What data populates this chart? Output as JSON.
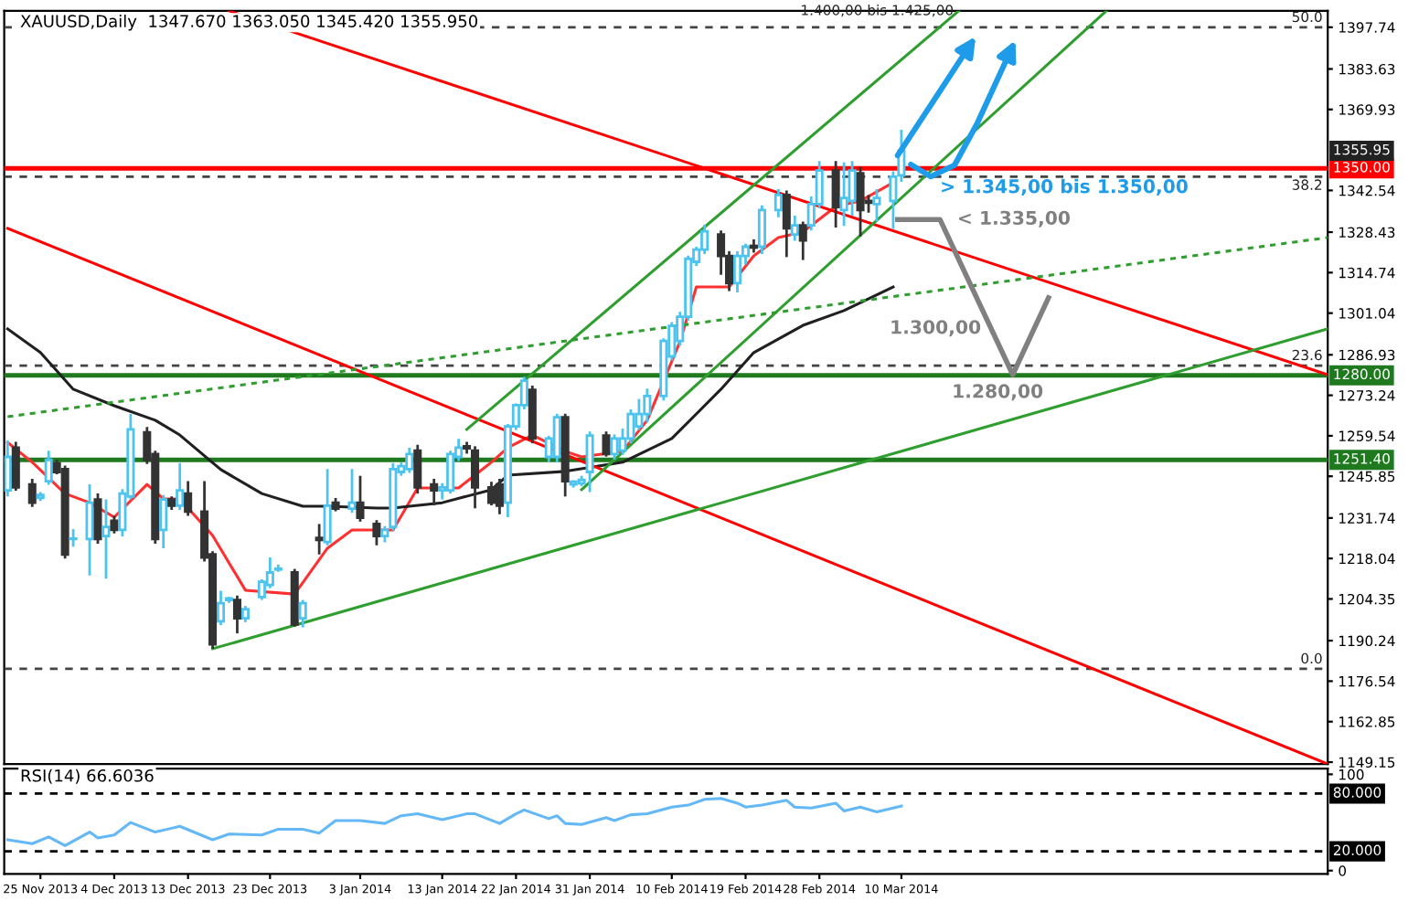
{
  "chart_data": [
    {
      "type": "candlestick",
      "title": "XAUUSD,Daily  1347.670 1363.050 1345.420 1355.950",
      "x": [
        "2013-11-21",
        "2013-11-22",
        "2013-11-24",
        "2013-11-25",
        "2013-11-26",
        "2013-11-27",
        "2013-11-28",
        "2013-11-29",
        "2013-12-01",
        "2013-12-02",
        "2013-12-03",
        "2013-12-04",
        "2013-12-05",
        "2013-12-06",
        "2013-12-08",
        "2013-12-09",
        "2013-12-10",
        "2013-12-11",
        "2013-12-12",
        "2013-12-13",
        "2013-12-15",
        "2013-12-16",
        "2013-12-17",
        "2013-12-18",
        "2013-12-19",
        "2013-12-20",
        "2013-12-22",
        "2013-12-23",
        "2013-12-24",
        "2013-12-26",
        "2013-12-27",
        "2013-12-29",
        "2013-12-30",
        "2013-12-31",
        "2014-01-02",
        "2014-01-03",
        "2014-01-05",
        "2014-01-06",
        "2014-01-07",
        "2014-01-08",
        "2014-01-09",
        "2014-01-10",
        "2014-01-12",
        "2014-01-13",
        "2014-01-14",
        "2014-01-15",
        "2014-01-16",
        "2014-01-17",
        "2014-01-19",
        "2014-01-20",
        "2014-01-21",
        "2014-01-22",
        "2014-01-23",
        "2014-01-24",
        "2014-01-26",
        "2014-01-27",
        "2014-01-28",
        "2014-01-29",
        "2014-01-30",
        "2014-01-31",
        "2014-02-02",
        "2014-02-03",
        "2014-02-04",
        "2014-02-05",
        "2014-02-06",
        "2014-02-07",
        "2014-02-09",
        "2014-02-10",
        "2014-02-11",
        "2014-02-12",
        "2014-02-13",
        "2014-02-14",
        "2014-02-16",
        "2014-02-17",
        "2014-02-18",
        "2014-02-19",
        "2014-02-20",
        "2014-02-21",
        "2014-02-23",
        "2014-02-24",
        "2014-02-25",
        "2014-02-26",
        "2014-02-27",
        "2014-02-28",
        "2014-03-02",
        "2014-03-03",
        "2014-03-04",
        "2014-03-05",
        "2014-03-06",
        "2014-03-07",
        "2014-03-09",
        "2014-03-10"
      ],
      "ohlc": [
        [
          1241.1,
          1258.0,
          1239.0,
          1252.4
        ],
        [
          1255.5,
          1257.5,
          1241.0,
          1242.1
        ],
        [
          1243.1,
          1245.0,
          1235.5,
          1236.9
        ],
        [
          1238.5,
          1240.5,
          1237.5,
          1239.5
        ],
        [
          1244.2,
          1254.5,
          1243.0,
          1251.4
        ],
        [
          1250.3,
          1251.5,
          1246.5,
          1247.3
        ],
        [
          1248.3,
          1249.5,
          1218.0,
          1219.4
        ],
        [
          1224.6,
          1228.0,
          1222.0,
          1224.8
        ],
        [
          1224.6,
          1243.1,
          1212.3,
          1236.9
        ],
        [
          1238.0,
          1240.0,
          1223.0,
          1224.6
        ],
        [
          1225.6,
          1238.0,
          1211.2,
          1228.7
        ],
        [
          1230.8,
          1232.5,
          1226.5,
          1227.7
        ],
        [
          1227.7,
          1241.5,
          1225.5,
          1240.0
        ],
        [
          1239.0,
          1266.9,
          1238.0,
          1261.7
        ],
        [
          1260.7,
          1262.5,
          1250.0,
          1251.4
        ],
        [
          1253.4,
          1254.5,
          1223.0,
          1224.6
        ],
        [
          1227.7,
          1239.5,
          1221.5,
          1238.0
        ],
        [
          1238.0,
          1239.0,
          1234.5,
          1235.9
        ],
        [
          1235.9,
          1250.3,
          1234.5,
          1241.1
        ],
        [
          1240.0,
          1244.2,
          1232.5,
          1233.9
        ],
        [
          1233.9,
          1244.2,
          1217.0,
          1218.4
        ],
        [
          1219.4,
          1220.5,
          1187.5,
          1189.0
        ],
        [
          1196.8,
          1207.1,
          1195.5,
          1202.9
        ],
        [
          1204.0,
          1205.0,
          1203.0,
          1204.5
        ],
        [
          1204.0,
          1205.5,
          1192.7,
          1197.8
        ],
        [
          1197.8,
          1202.0,
          1196.5,
          1200.9
        ],
        [
          1205.0,
          1211.0,
          1204.0,
          1210.2
        ],
        [
          1209.1,
          1218.4,
          1208.0,
          1213.3
        ],
        [
          1214.3,
          1216.0,
          1213.5,
          1214.6
        ],
        [
          1213.3,
          1214.5,
          1195.0,
          1195.7
        ],
        [
          1197.8,
          1204.0,
          1194.7,
          1202.9
        ],
        [
          1225.0,
          1229.7,
          1219.4,
          1224.3
        ],
        [
          1223.6,
          1248.3,
          1222.5,
          1235.9
        ],
        [
          1236.9,
          1238.5,
          1234.0,
          1234.9
        ],
        [
          1234.9,
          1248.3,
          1233.5,
          1236.9
        ],
        [
          1236.9,
          1246.0,
          1230.5,
          1231.8
        ],
        [
          1229.7,
          1231.0,
          1222.5,
          1225.6
        ],
        [
          1225.6,
          1229.0,
          1223.5,
          1227.7
        ],
        [
          1228.7,
          1250.3,
          1227.5,
          1248.3
        ],
        [
          1247.3,
          1250.5,
          1246.0,
          1249.3
        ],
        [
          1248.3,
          1255.5,
          1247.0,
          1253.4
        ],
        [
          1254.5,
          1256.5,
          1240.0,
          1242.1
        ],
        [
          1243.1,
          1245.0,
          1236.0,
          1241.1
        ],
        [
          1241.1,
          1243.5,
          1238.0,
          1242.1
        ],
        [
          1241.1,
          1254.5,
          1240.0,
          1253.4
        ],
        [
          1252.4,
          1258.5,
          1251.0,
          1255.5
        ],
        [
          1256.0,
          1257.5,
          1253.5,
          1255.3
        ],
        [
          1254.5,
          1256.0,
          1235.0,
          1242.1
        ],
        [
          1242.1,
          1244.0,
          1236.0,
          1236.9
        ],
        [
          1243.1,
          1245.0,
          1233.0,
          1235.9
        ],
        [
          1236.9,
          1263.5,
          1232.0,
          1262.7
        ],
        [
          1262.7,
          1270.5,
          1261.5,
          1269.9
        ],
        [
          1269.9,
          1279.5,
          1268.5,
          1278.2
        ],
        [
          1275.1,
          1276.5,
          1257.0,
          1258.6
        ],
        [
          1252.4,
          1259.5,
          1250.5,
          1258.6
        ],
        [
          1252.4,
          1267.0,
          1250.5,
          1265.8
        ],
        [
          1265.8,
          1267.0,
          1239.0,
          1244.2
        ],
        [
          1243.1,
          1244.5,
          1242.0,
          1244.0
        ],
        [
          1243.5,
          1246.0,
          1242.5,
          1244.6
        ],
        [
          1247.3,
          1261.0,
          1240.5,
          1259.6
        ],
        [
          1259.6,
          1261.0,
          1252.5,
          1253.4
        ],
        [
          1253.4,
          1260.0,
          1251.5,
          1258.6
        ],
        [
          1254.5,
          1262.0,
          1253.0,
          1258.6
        ],
        [
          1258.6,
          1268.5,
          1257.0,
          1266.9
        ],
        [
          1262.7,
          1272.0,
          1261.5,
          1266.9
        ],
        [
          1266.9,
          1275.5,
          1264.0,
          1273.0
        ],
        [
          1273.0,
          1292.5,
          1271.5,
          1291.6
        ],
        [
          1286.4,
          1298.0,
          1285.0,
          1296.7
        ],
        [
          1291.6,
          1301.5,
          1290.0,
          1299.8
        ],
        [
          1299.8,
          1320.5,
          1298.5,
          1319.4
        ],
        [
          1318.4,
          1323.5,
          1317.0,
          1322.5
        ],
        [
          1322.5,
          1331.0,
          1321.0,
          1328.7
        ],
        [
          1327.6,
          1329.0,
          1314.0,
          1320.4
        ],
        [
          1320.4,
          1322.0,
          1308.5,
          1311.2
        ],
        [
          1311.2,
          1322.0,
          1308.0,
          1320.4
        ],
        [
          1320.4,
          1324.5,
          1317.5,
          1323.5
        ],
        [
          1323.8,
          1326.0,
          1321.5,
          1323.2
        ],
        [
          1323.5,
          1337.5,
          1321.0,
          1335.9
        ],
        [
          1335.9,
          1343.0,
          1333.5,
          1341.0
        ],
        [
          1341.0,
          1342.5,
          1320.0,
          1329.7
        ],
        [
          1327.6,
          1334.0,
          1325.5,
          1330.7
        ],
        [
          1330.7,
          1332.0,
          1319.0,
          1325.6
        ],
        [
          1330.7,
          1340.5,
          1329.0,
          1337.9
        ],
        [
          1337.9,
          1352.5,
          1336.5,
          1349.3
        ],
        [
          1349.3,
          1352.5,
          1330.0,
          1336.9
        ],
        [
          1335.9,
          1352.0,
          1330.5,
          1340.0
        ],
        [
          1339.0,
          1352.5,
          1334.0,
          1349.3
        ],
        [
          1348.3,
          1350.5,
          1327.0,
          1335.9
        ],
        [
          1339.0,
          1341.0,
          1335.0,
          1338.4
        ],
        [
          1337.9,
          1343.0,
          1332.0,
          1340.0
        ],
        [
          1339.0,
          1349.0,
          1329.5,
          1347.2
        ],
        [
          1347.67,
          1363.05,
          1345.42,
          1355.95
        ]
      ],
      "series": [
        {
          "type": "line",
          "color": "#ff3030",
          "x": [
            "2013-11-21",
            "2013-11-24",
            "2013-11-28",
            "2013-12-01",
            "2013-12-04",
            "2013-12-08",
            "2013-12-10",
            "2013-12-12",
            "2013-12-16",
            "2013-12-20",
            "2013-12-26",
            "2013-12-30",
            "2014-01-02",
            "2014-01-07",
            "2014-01-10",
            "2014-01-15",
            "2014-01-19",
            "2014-01-21",
            "2014-01-24",
            "2014-01-28",
            "2014-01-30",
            "2014-02-04",
            "2014-02-07",
            "2014-02-11",
            "2014-02-13",
            "2014-02-17",
            "2014-02-20",
            "2014-02-23",
            "2014-02-26",
            "2014-03-02",
            "2014-03-05",
            "2014-03-09"
          ],
          "values": [
            1257.3,
            1250.6,
            1240.0,
            1236.9,
            1232.0,
            1243.1,
            1238.2,
            1238.2,
            1225.8,
            1207.3,
            1206.0,
            1221.5,
            1227.7,
            1227.7,
            1241.9,
            1241.9,
            1250.6,
            1255.5,
            1259.8,
            1254.3,
            1252.4,
            1254.3,
            1264.8,
            1291.4,
            1309.9,
            1309.9,
            1320.4,
            1326.6,
            1328.5,
            1337.1,
            1339.0,
            1345.2
          ]
        },
        {
          "type": "line",
          "color": "#202020",
          "x": [
            "2013-11-21",
            "2013-11-25",
            "2013-11-29",
            "2013-12-04",
            "2013-12-09",
            "2013-12-12",
            "2013-12-17",
            "2013-12-22",
            "2013-12-27",
            "2013-12-30",
            "2014-01-05",
            "2014-01-07",
            "2014-01-09",
            "2014-01-13",
            "2014-01-19",
            "2014-01-21",
            "2014-01-28",
            "2014-02-04",
            "2014-02-10",
            "2014-02-16",
            "2014-02-20",
            "2014-02-26",
            "2014-03-03",
            "2014-03-09"
          ],
          "values": [
            1295.7,
            1287.7,
            1275.3,
            1269.7,
            1264.8,
            1259.8,
            1248.1,
            1240.0,
            1235.7,
            1235.7,
            1235.1,
            1235.1,
            1235.7,
            1236.9,
            1241.3,
            1246.2,
            1247.5,
            1250.6,
            1258.6,
            1275.3,
            1287.7,
            1296.9,
            1301.9,
            1309.9
          ]
        },
        {
          "type": "line",
          "color": "#ff0000",
          "x": [
            "2013-12-18",
            "2014-05-01"
          ],
          "values": [
            1403.3,
            1280.2
          ]
        },
        {
          "type": "line",
          "color": "#ff0000",
          "x": [
            "2013-11-21",
            "2014-05-01"
          ],
          "values": [
            1329.7,
            1148.5
          ]
        },
        {
          "type": "line",
          "color": "#2e9e2e",
          "x": [
            "2014-01-16",
            "2014-03-17"
          ],
          "values": [
            1261.7,
            1403.3
          ]
        },
        {
          "type": "line",
          "color": "#2e9e2e",
          "x": [
            "2014-01-30",
            "2014-04-04"
          ],
          "values": [
            1241.3,
            1403.3
          ]
        },
        {
          "type": "line",
          "color": "#2e9e2e",
          "x": [
            "2013-12-16",
            "2014-05-01"
          ],
          "values": [
            1187.5,
            1295.7
          ]
        },
        {
          "type": "line",
          "color": "#2e9e2e",
          "line_style": "dotted",
          "x": [
            "2013-11-21",
            "2014-05-01"
          ],
          "values": [
            1266.0,
            1326.6
          ]
        }
      ],
      "ref_lines": [
        {
          "axis": "y",
          "value": 1397.7,
          "line_style": "dashed"
        },
        {
          "axis": "y",
          "value": 1347.2,
          "line_style": "dashed"
        },
        {
          "axis": "y",
          "value": 1283.3,
          "line_style": "dashed"
        },
        {
          "axis": "y",
          "value": 1180.7,
          "line_style": "dashed"
        },
        {
          "axis": "y",
          "value": 1350.0,
          "label": "1350.00",
          "color": "#ff0000",
          "line_style": "solid"
        },
        {
          "axis": "y",
          "value": 1280.0,
          "label": "1280.00",
          "color": "#1f7a1f",
          "line_style": "solid"
        },
        {
          "axis": "y",
          "value": 1251.4,
          "label": "1251.40",
          "color": "#1f7a1f",
          "line_style": "solid"
        }
      ],
      "annotations": [
        {
          "text": "1.400,00 bis 1.425,00",
          "x": "2014-03-17",
          "y": 1400
        },
        "1355.95",
        "> 1.345,00 bis 1.350,00",
        "< 1.335,00",
        "1.300,00",
        "1.280,00",
        {
          "text": "50.0",
          "x": "2014-05-01",
          "y": 1397.7
        },
        {
          "text": "38.2",
          "x": "2014-05-01",
          "y": 1347.2
        },
        {
          "text": "23.6",
          "x": "2014-05-01",
          "y": 1283.3
        },
        {
          "text": "0.0",
          "x": "2014-05-01",
          "y": 1180.7
        }
      ],
      "xlim": [
        "2013-11-20T14:00",
        "2014-05-01"
      ],
      "ylim": [
        1148.5,
        1403.3
      ],
      "yticks": [
        1397.74,
        1383.63,
        1369.93,
        1342.54,
        1328.43,
        1314.74,
        1301.04,
        1286.93,
        1273.24,
        1259.54,
        1245.85,
        1231.74,
        1218.04,
        1204.35,
        1190.24,
        1176.54,
        1162.85,
        1149.15
      ],
      "tick_labels": "y"
    },
    {
      "type": "line",
      "title": "RSI(14) 66.6036",
      "series": [
        {
          "color": "#63b8f5",
          "x": [
            "2013-11-21",
            "2013-11-24",
            "2013-11-26",
            "2013-11-28",
            "2013-12-01",
            "2013-12-02",
            "2013-12-04",
            "2013-12-06",
            "2013-12-09",
            "2013-12-11",
            "2013-12-12",
            "2013-12-16",
            "2013-12-18",
            "2013-12-22",
            "2013-12-24",
            "2013-12-27",
            "2013-12-29",
            "2013-12-31",
            "2014-01-03",
            "2014-01-06",
            "2014-01-08",
            "2014-01-10",
            "2014-01-13",
            "2014-01-16",
            "2014-01-17",
            "2014-01-20",
            "2014-01-22",
            "2014-01-23",
            "2014-01-26",
            "2014-01-27",
            "2014-01-28",
            "2014-01-30",
            "2014-02-02",
            "2014-02-03",
            "2014-02-05",
            "2014-02-07",
            "2014-02-10",
            "2014-02-12",
            "2014-02-14",
            "2014-02-16",
            "2014-02-18",
            "2014-02-19",
            "2014-02-21",
            "2014-02-24",
            "2014-02-25",
            "2014-02-27",
            "2014-03-02",
            "2014-03-03",
            "2014-03-05",
            "2014-03-07",
            "2014-03-10"
          ],
          "values": [
            32,
            28,
            35,
            26,
            40,
            34,
            37,
            50,
            40,
            44,
            46,
            32,
            38,
            37,
            43,
            43,
            39,
            52,
            52,
            49,
            57,
            59,
            53,
            59,
            59,
            49,
            59,
            63,
            54,
            57,
            49,
            48,
            55,
            52,
            58,
            59,
            66,
            68,
            74,
            75,
            70,
            66,
            68,
            73,
            66,
            65,
            70,
            62,
            66,
            61,
            67
          ]
        }
      ],
      "ref_lines": [
        {
          "axis": "y",
          "value": 80,
          "label": "80.000",
          "color": "#000000",
          "line_style": "dashed"
        },
        {
          "axis": "y",
          "value": 20,
          "label": "20.000",
          "color": "#000000",
          "line_style": "dashed"
        }
      ],
      "xlim": [
        "2013-11-20T14:00",
        "2014-05-01"
      ],
      "ylim": [
        -3.5,
        106
      ],
      "xticks": [
        {
          "value": "2013-11-25",
          "label": "25 Nov 2013"
        },
        {
          "value": "2013-12-04",
          "label": "4 Dec 2013"
        },
        {
          "value": "2013-12-13",
          "label": "13 Dec 2013"
        },
        {
          "value": "2013-12-23",
          "label": "23 Dec 2013"
        },
        {
          "value": "2014-01-03",
          "label": "3 Jan 2014"
        },
        {
          "value": "2014-01-13",
          "label": "13 Jan 2014"
        },
        {
          "value": "2014-01-22",
          "label": "22 Jan 2014"
        },
        {
          "value": "2014-01-31",
          "label": "31 Jan 2014"
        },
        {
          "value": "2014-02-10",
          "label": "10 Feb 2014"
        },
        {
          "value": "2014-02-19",
          "label": "19 Feb 2014"
        },
        {
          "value": "2014-02-28",
          "label": "28 Feb 2014"
        },
        {
          "value": "2014-03-10",
          "label": "10 Mar 2014"
        }
      ],
      "yticks": [
        0,
        100
      ]
    }
  ]
}
